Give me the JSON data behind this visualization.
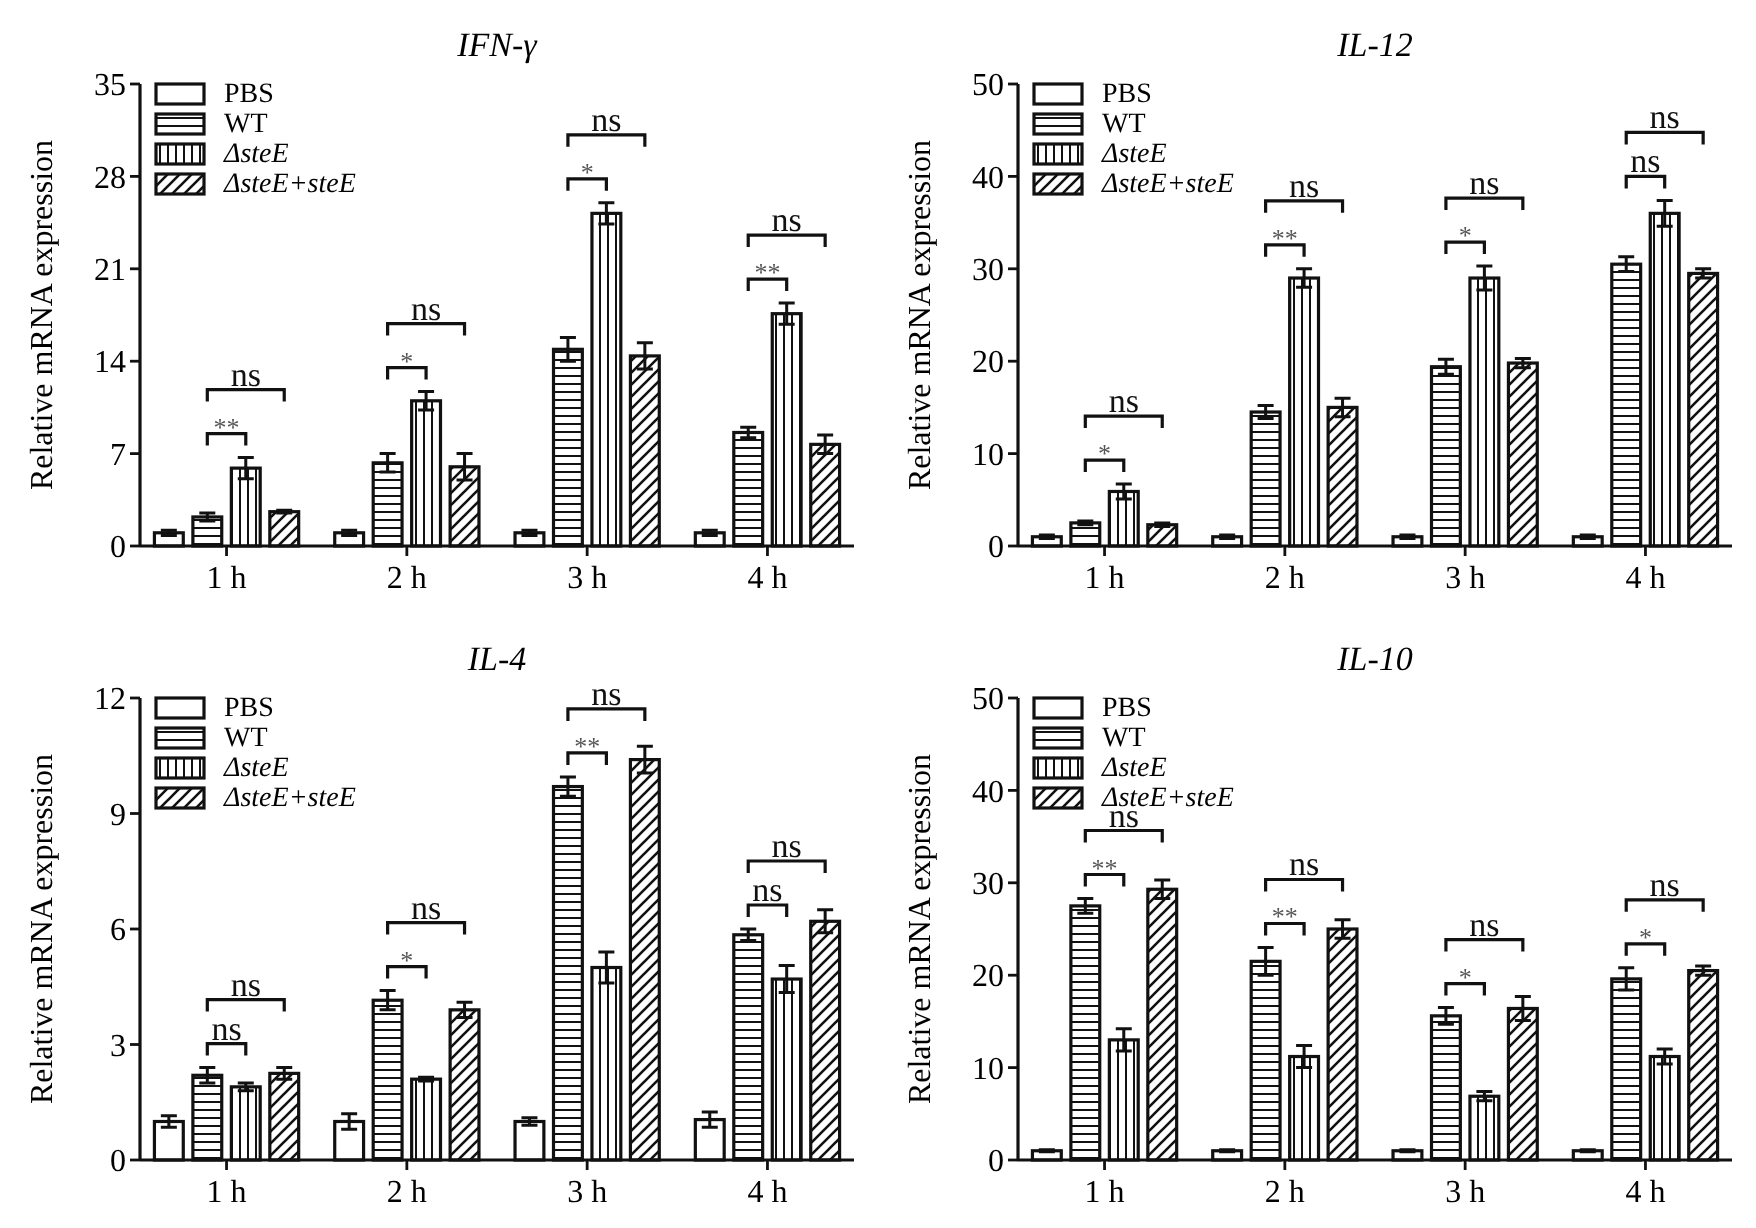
{
  "chart_data": [
    {
      "type": "bar",
      "title": "IFN-γ",
      "ylabel": "Relative mRNA expression",
      "categories": [
        "1 h",
        "2 h",
        "3 h",
        "4 h"
      ],
      "ylim": [
        0,
        35
      ],
      "yticks": [
        0,
        7,
        14,
        21,
        28,
        35
      ],
      "legend": "top left",
      "series": [
        {
          "name": "PBS",
          "color": "#ffffff",
          "values": [
            1.0,
            1.0,
            1.0,
            1.0
          ],
          "errors": [
            0.2,
            0.2,
            0.2,
            0.2
          ]
        },
        {
          "name": "WT",
          "color": "#111111",
          "values": [
            2.2,
            6.3,
            14.9,
            8.6
          ],
          "errors": [
            0.3,
            0.7,
            0.9,
            0.4
          ]
        },
        {
          "name": "ΔsteE",
          "color": "#111111",
          "values": [
            5.9,
            11.0,
            25.2,
            17.6
          ],
          "errors": [
            0.8,
            0.7,
            0.8,
            0.8
          ]
        },
        {
          "name": "ΔsteE+steE",
          "color": "#111111",
          "values": [
            2.6,
            6.0,
            14.4,
            7.7
          ],
          "errors": [
            0.1,
            1.0,
            1.0,
            0.7
          ]
        }
      ],
      "annotations": [
        "**",
        "ns",
        "*",
        "ns",
        "*",
        "ns",
        "**",
        "ns"
      ]
    },
    {
      "type": "bar",
      "title": "IL-12",
      "ylabel": "Relative mRNA expression",
      "categories": [
        "1 h",
        "2 h",
        "3 h",
        "4 h"
      ],
      "ylim": [
        0,
        50
      ],
      "yticks": [
        0,
        10,
        20,
        30,
        40,
        50
      ],
      "legend": "top left",
      "series": [
        {
          "name": "PBS",
          "color": "#ffffff",
          "values": [
            1.0,
            1.0,
            1.0,
            1.0
          ],
          "errors": [
            0.2,
            0.2,
            0.2,
            0.2
          ]
        },
        {
          "name": "WT",
          "color": "#111111",
          "values": [
            2.5,
            14.5,
            19.4,
            30.5
          ],
          "errors": [
            0.2,
            0.7,
            0.8,
            0.8
          ]
        },
        {
          "name": "ΔsteE",
          "color": "#111111",
          "values": [
            5.9,
            29.0,
            29.0,
            36.0
          ],
          "errors": [
            0.8,
            1.0,
            1.3,
            1.4
          ]
        },
        {
          "name": "ΔsteE+steE",
          "color": "#111111",
          "values": [
            2.3,
            15.0,
            19.8,
            29.5
          ],
          "errors": [
            0.2,
            1.0,
            0.5,
            0.5
          ]
        }
      ],
      "annotations": [
        "*",
        "ns",
        "**",
        "ns",
        "*",
        "ns",
        "ns",
        "ns"
      ]
    },
    {
      "type": "bar",
      "title": "IL-4",
      "ylabel": "Relative mRNA expression",
      "categories": [
        "1 h",
        "2 h",
        "3 h",
        "4 h"
      ],
      "ylim": [
        0,
        12
      ],
      "yticks": [
        0,
        3,
        6,
        9,
        12
      ],
      "legend": "top left",
      "series": [
        {
          "name": "PBS",
          "color": "#ffffff",
          "values": [
            1.0,
            1.0,
            1.0,
            1.05
          ],
          "errors": [
            0.15,
            0.2,
            0.1,
            0.2
          ]
        },
        {
          "name": "WT",
          "color": "#111111",
          "values": [
            2.2,
            4.15,
            9.7,
            5.85
          ],
          "errors": [
            0.2,
            0.25,
            0.25,
            0.15
          ]
        },
        {
          "name": "ΔsteE",
          "color": "#111111",
          "values": [
            1.9,
            2.1,
            5.0,
            4.7
          ],
          "errors": [
            0.1,
            0.05,
            0.4,
            0.35
          ]
        },
        {
          "name": "ΔsteE+steE",
          "color": "#111111",
          "values": [
            2.25,
            3.9,
            10.4,
            6.2
          ],
          "errors": [
            0.15,
            0.2,
            0.35,
            0.3
          ]
        }
      ],
      "annotations": [
        "ns",
        "ns",
        "*",
        "ns",
        "**",
        "ns",
        "ns",
        "ns"
      ]
    },
    {
      "type": "bar",
      "title": "IL-10",
      "ylabel": "Relative mRNA expression",
      "categories": [
        "1 h",
        "2 h",
        "3 h",
        "4 h"
      ],
      "ylim": [
        0,
        50
      ],
      "yticks": [
        0,
        10,
        20,
        30,
        40,
        50
      ],
      "legend": "top left",
      "series": [
        {
          "name": "PBS",
          "color": "#ffffff",
          "values": [
            1.0,
            1.0,
            1.0,
            1.0
          ],
          "errors": [
            0.1,
            0.1,
            0.1,
            0.1
          ]
        },
        {
          "name": "WT",
          "color": "#111111",
          "values": [
            27.5,
            21.5,
            15.6,
            19.6
          ],
          "errors": [
            0.8,
            1.5,
            0.9,
            1.2
          ]
        },
        {
          "name": "ΔsteE",
          "color": "#111111",
          "values": [
            13.0,
            11.2,
            6.9,
            11.2
          ],
          "errors": [
            1.2,
            1.2,
            0.5,
            0.8
          ]
        },
        {
          "name": "ΔsteE+steE",
          "color": "#111111",
          "values": [
            29.3,
            25.0,
            16.4,
            20.5
          ],
          "errors": [
            1.0,
            1.0,
            1.3,
            0.5
          ]
        }
      ],
      "annotations": [
        "**",
        "ns",
        "**",
        "ns",
        "*",
        "ns",
        "*",
        "ns"
      ]
    }
  ]
}
